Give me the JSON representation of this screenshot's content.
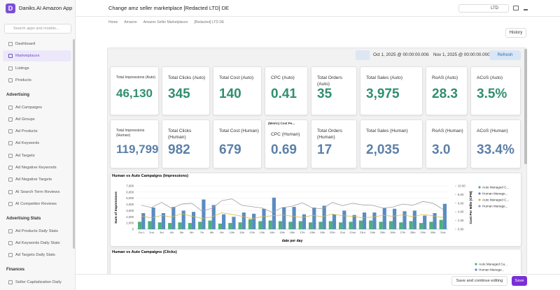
{
  "sidebar": {
    "logo": "D",
    "app_name": "Daniks.AI Amazon App",
    "search_placeholder": "Search apps and models...",
    "active_index": 1,
    "nav_items": [
      "Dashboard",
      "Marketplaces",
      "Listings",
      "Products"
    ],
    "sections": [
      {
        "title": "Advertising",
        "items": [
          "Ad Campaigns",
          "Ad Groups",
          "Ad Products",
          "Ad Keywords",
          "Ad Targets",
          "Ad Negative Keywords",
          "Ad Negative Targets",
          "AI Search Term Reviews",
          "AI Competitor Reviews"
        ]
      },
      {
        "title": "Advertising Stats",
        "items": [
          "Ad Products Daily Stats",
          "Ad Keywords Daily Stats",
          "Ad Targets Daily Stats"
        ]
      },
      {
        "title": "Finances",
        "items": [
          "Seller Capitalization Daily"
        ]
      }
    ]
  },
  "header": {
    "title": "Change amz seller marketplace [Redacted LTD] DE",
    "account": "LTD",
    "breadcrumbs": [
      "Home",
      "Amazon",
      "Amazon Seller Marketplaces",
      "[Redacted] LTD DE"
    ],
    "history": "History"
  },
  "date_range": {
    "start": "Oct 1, 2025 @ 00:00:00.000",
    "arrow": "→",
    "end": "Nov 1, 2025 @ 00:00:00.000",
    "refresh": "Refresh"
  },
  "kpis": {
    "colors": [
      "#2f8f6f",
      "#5b80a8"
    ],
    "rows": [
      [
        {
          "label": "Total Impressions (Auto)",
          "value": "46,130"
        },
        {
          "label": "Total Clicks (Auto)",
          "value": "345"
        },
        {
          "label": "Total Cost (Auto)",
          "value": "140"
        },
        {
          "label": "CPC (Auto)",
          "value": "0.41"
        },
        {
          "label": "Total Orders (Auto)",
          "value": "35"
        },
        {
          "label": "Total Sales (Auto)",
          "value": "3,975"
        },
        {
          "label": "RoAS (Auto)",
          "value": "28.3"
        },
        {
          "label": "ACoS (Auto)",
          "value": "3.5%"
        }
      ],
      [
        {
          "label": "Total Impressions (Human)",
          "value": "119,799"
        },
        {
          "label": "Total Clicks (Human)",
          "value": "982"
        },
        {
          "label": "Total Cost (Human)",
          "value": "679"
        },
        {
          "header": "(Metric) Cost Pe...",
          "label": "CPC (Human)",
          "value": "0.69"
        },
        {
          "label": "Total Orders (Human)",
          "value": "17"
        },
        {
          "label": "Total Sales (Human)",
          "value": "2,035"
        },
        {
          "label": "RoAS (Human)",
          "value": "3.0"
        },
        {
          "label": "ACoS (Human)",
          "value": "33.4%"
        }
      ]
    ]
  },
  "charts": [
    {
      "title": "Human vs Auto Campaigns (Impressions)",
      "y_label": "Sum of Impressions",
      "y2_label": "Cost Per Mille (CPM)",
      "x_label": "date per day",
      "categories": [
        "Oct 1",
        "2nd",
        "3rd",
        "4th",
        "5th",
        "6th",
        "7th",
        "8th",
        "9th",
        "10th",
        "11th",
        "12th",
        "13th",
        "14th",
        "15th",
        "16th",
        "17th",
        "18th",
        "19th",
        "20th",
        "21st",
        "22nd",
        "23rd",
        "24th",
        "25th",
        "26th",
        "27th",
        "28th",
        "29th",
        "30th",
        "31st"
      ],
      "ylim": [
        0,
        7000
      ],
      "yticks": [
        0,
        {
          "value": 1000,
          "label": "1,000"
        },
        {
          "value": 2000,
          "label": "2,000"
        },
        {
          "value": 3000,
          "label": "3,000"
        },
        {
          "value": 4000,
          "label": "4,000"
        },
        {
          "value": 5000,
          "label": "5,000"
        },
        {
          "value": 6000,
          "label": "6,000"
        },
        {
          "value": 7000,
          "label": "7,000"
        }
      ],
      "y2lim": [
        0,
        10
      ],
      "y2ticks": [
        {
          "value": 0,
          "label": "0.00"
        },
        {
          "value": 2,
          "label": "2.00"
        },
        {
          "value": 4,
          "label": "4.00"
        },
        {
          "value": 6,
          "label": "6.00"
        },
        {
          "value": 8,
          "label": "8.00"
        },
        {
          "value": 10,
          "label": "10.00"
        }
      ],
      "series": [
        {
          "name": "Auto Managed C...",
          "type": "bar",
          "color": "#4caf7d",
          "values": [
            1200,
            1300,
            1100,
            1000,
            1100,
            1000,
            1200,
            1400,
            900,
            1000,
            1100,
            1600,
            1300,
            1400,
            1300,
            1200,
            1300,
            1100,
            1200,
            1300,
            1100,
            1200,
            1400,
            1400,
            1200,
            1300,
            1100,
            1300,
            1000,
            1200,
            1500
          ]
        },
        {
          "name": "Human Manage...",
          "type": "bar",
          "color": "#5b8cc0",
          "values": [
            2600,
            3500,
            2600,
            3600,
            3000,
            2800,
            4800,
            3900,
            2400,
            2000,
            2700,
            2500,
            3300,
            5100,
            3500,
            3600,
            2400,
            3500,
            3800,
            2400,
            3000,
            2300,
            2700,
            2700,
            3400,
            3300,
            2900,
            3000,
            2200,
            2600,
            4100
          ]
        },
        {
          "name": "Auto Managed C...",
          "type": "line",
          "axis": "y2",
          "color": "#d9bd3c",
          "values": [
            3.0,
            2.6,
            3.2,
            2.8,
            3.6,
            3.0,
            2.5,
            2.8,
            3.8,
            3.4,
            3.0,
            2.4,
            2.9,
            3.1,
            3.3,
            3.0,
            2.7,
            3.2,
            2.9,
            3.5,
            3.1,
            3.0,
            2.6,
            2.8,
            3.2,
            3.0,
            3.3,
            2.9,
            3.4,
            3.1,
            2.7
          ]
        },
        {
          "name": "Human Manage...",
          "type": "line",
          "axis": "y2",
          "color": "#9aa0a6",
          "values": [
            5.5,
            5.0,
            6.2,
            4.8,
            5.8,
            6.0,
            4.2,
            4.8,
            6.6,
            7.0,
            5.5,
            5.2,
            4.9,
            3.9,
            5.0,
            5.3,
            6.1,
            4.9,
            4.7,
            6.2,
            5.4,
            6.0,
            5.6,
            5.5,
            4.9,
            5.1,
            5.8,
            5.5,
            6.4,
            6.0,
            4.6
          ]
        }
      ]
    },
    {
      "title": "Human vs Auto Campaigns (Clicks)",
      "series": [
        {
          "name": "Auto Managed Ca...",
          "color": "#4caf7d"
        },
        {
          "name": "Human Manage...",
          "color": "#5b8cc0"
        }
      ]
    }
  ],
  "footer": {
    "save_continue": "Save and continue editing",
    "save": "Save"
  }
}
